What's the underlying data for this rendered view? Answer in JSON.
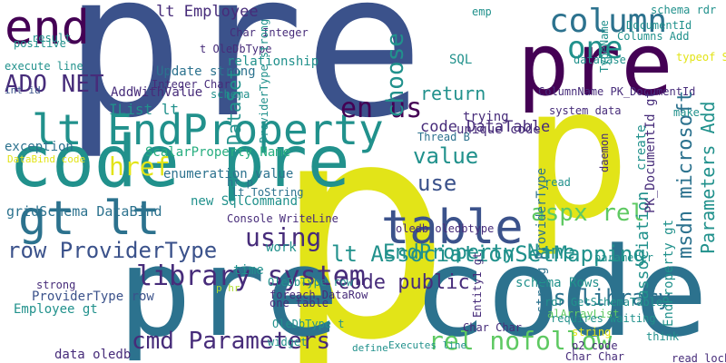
{
  "colors": {
    "background": "#ffffff",
    "palette": [
      "#440154",
      "#472c7a",
      "#3b528b",
      "#2c728e",
      "#21918c",
      "#28ae80",
      "#5ec962",
      "#addc30",
      "#e2e418"
    ]
  },
  "cloud": {
    "words": [
      {
        "text": "pre",
        "c": 2
      },
      {
        "text": "p",
        "c": 8
      },
      {
        "text": "p",
        "c": 8
      },
      {
        "text": "pre code",
        "c": 3
      },
      {
        "text": "pre p",
        "c": 0
      },
      {
        "text": "code pre",
        "c": 4
      },
      {
        "text": "lt EndProperty",
        "c": 4
      },
      {
        "text": "gt lt",
        "c": 3
      },
      {
        "text": "table",
        "c": 2
      },
      {
        "text": "en us",
        "c": 0
      },
      {
        "text": "end",
        "c": 0
      },
      {
        "text": "column",
        "c": 3
      },
      {
        "text": "one",
        "c": 4
      },
      {
        "text": "library system",
        "c": 1
      },
      {
        "text": "aspx rel",
        "c": 6
      },
      {
        "text": "value",
        "c": 4
      },
      {
        "text": "cmd Parameters",
        "c": 1
      },
      {
        "text": "rel nofollow",
        "c": 6
      },
      {
        "text": "ADO NET",
        "c": 1
      },
      {
        "text": "href",
        "c": 8
      },
      {
        "text": "use",
        "c": 2
      },
      {
        "text": "using",
        "c": 1
      },
      {
        "text": "return",
        "c": 4
      },
      {
        "text": "row ProviderType",
        "c": 2
      },
      {
        "text": "gridSchema DataBind",
        "c": 3
      },
      {
        "text": "Thread B",
        "c": 3
      },
      {
        "text": "code DataTable",
        "c": 1
      },
      {
        "text": "schema Rows",
        "c": 4
      },
      {
        "text": "lt Employee",
        "c": 1
      },
      {
        "text": "AddWithValue",
        "c": 1
      },
      {
        "text": "IList lt",
        "c": 4
      },
      {
        "text": "SQL",
        "c": 4
      },
      {
        "text": "code public",
        "c": 1
      },
      {
        "text": "lt AssociationSetMapping",
        "c": 4
      },
      {
        "text": "us library",
        "c": 3
      },
      {
        "text": "EndProperty Name",
        "c": 4
      },
      {
        "text": "new SqlCommand",
        "c": 4
      },
      {
        "text": "enumeration value",
        "c": 3
      },
      {
        "text": "trying",
        "c": 1
      },
      {
        "text": "ScalarProperty Name",
        "c": 5
      },
      {
        "text": "exception",
        "c": 3
      },
      {
        "text": "DataBind code",
        "c": 8
      },
      {
        "text": "execute line",
        "c": 4
      },
      {
        "text": "int id",
        "c": 2
      },
      {
        "text": "data oledb",
        "c": 1
      },
      {
        "text": "strong",
        "c": 1
      },
      {
        "text": "ProviderType row",
        "c": 2
      },
      {
        "text": "Employee gt",
        "c": 4
      },
      {
        "text": "p hr",
        "c": 7
      },
      {
        "text": "OleDbType row",
        "c": 4
      },
      {
        "text": "foreach DataRow",
        "c": 1
      },
      {
        "text": "Char Integer",
        "c": 1
      },
      {
        "text": "t OleDbType",
        "c": 1
      },
      {
        "text": "Update strong",
        "c": 3
      },
      {
        "text": "Integer Char",
        "c": 1
      },
      {
        "text": "schema",
        "c": 4
      },
      {
        "text": "relationship",
        "c": 4
      },
      {
        "text": "unique code",
        "c": 1
      },
      {
        "text": "oledb oledbtype",
        "c": 1
      },
      {
        "text": "read",
        "c": 4
      },
      {
        "text": "system data",
        "c": 1
      },
      {
        "text": "ColumnName PK_DocumentId",
        "c": 1
      },
      {
        "text": "parameter",
        "c": 4
      },
      {
        "text": "Char Char",
        "c": 1
      },
      {
        "text": "emp",
        "c": 4
      },
      {
        "text": "schema rdr",
        "c": 4
      },
      {
        "text": "DocumentId",
        "c": 4
      },
      {
        "text": "Columns Add",
        "c": 4
      },
      {
        "text": "database",
        "c": 4
      },
      {
        "text": "typeof String",
        "c": 8
      },
      {
        "text": "make",
        "c": 4
      },
      {
        "text": "read lock",
        "c": 1
      },
      {
        "text": "think",
        "c": 4
      },
      {
        "text": "p2 code",
        "c": 1
      },
      {
        "text": "Char Char",
        "c": 1
      },
      {
        "text": "alArrayList",
        "c": 6
      },
      {
        "text": "rdr GetSchemaTable",
        "c": 4
      },
      {
        "text": "Console WriteLine",
        "c": 1
      },
      {
        "text": "time",
        "c": 4
      },
      {
        "text": "work",
        "c": 4
      },
      {
        "text": "hr p",
        "c": 3
      },
      {
        "text": "lt ToString",
        "c": 3
      },
      {
        "text": "result",
        "c": 4
      },
      {
        "text": "positive",
        "c": 4
      },
      {
        "text": "widget",
        "c": 4
      },
      {
        "text": "OleDbType t",
        "c": 4
      },
      {
        "text": "one table",
        "c": 1
      },
      {
        "text": "define",
        "c": 4
      },
      {
        "text": "Executes line",
        "c": 4
      },
      {
        "text": "string",
        "c": 8
      },
      {
        "text": "requires waiting",
        "c": 4
      },
      {
        "text": "choose",
        "c": 4
      },
      {
        "text": "DataSet",
        "c": 4
      },
      {
        "text": "ProviderType strong",
        "c": 4
      },
      {
        "text": "msdn microsoft",
        "c": 3
      },
      {
        "text": "Parameters Add",
        "c": 4
      },
      {
        "text": "association",
        "c": 4
      },
      {
        "text": "PK_DocumentId gt",
        "c": 1
      },
      {
        "text": "EndProperty gt",
        "c": 4
      },
      {
        "text": "daemon",
        "c": 1
      },
      {
        "text": "strong ProviderType",
        "c": 3
      },
      {
        "text": "create",
        "c": 4
      },
      {
        "text": "Entity1 gt",
        "c": 1
      },
      {
        "text": "TypeName",
        "c": 4
      }
    ]
  }
}
